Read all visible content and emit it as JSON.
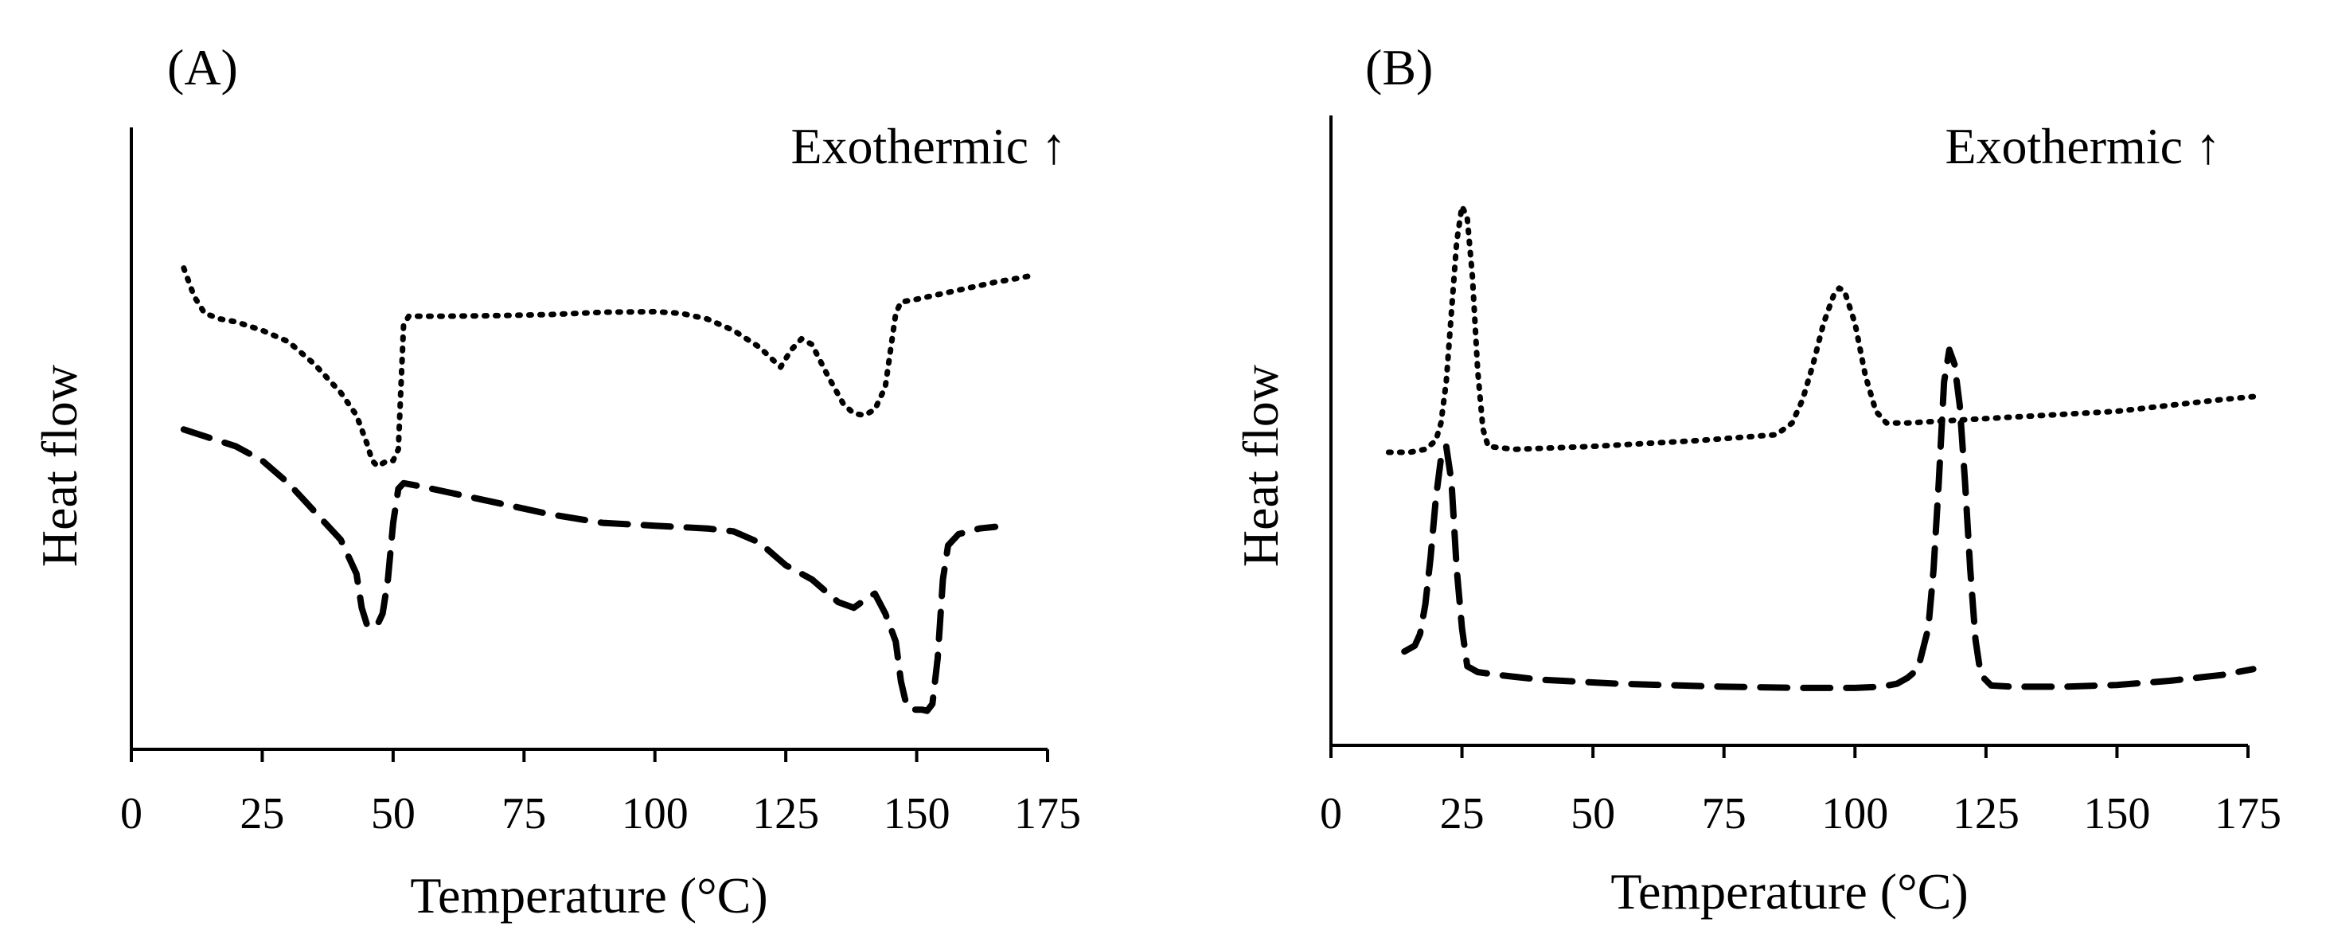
{
  "chart_data": [
    {
      "type": "line",
      "panel_label": "(A)",
      "annotation": "Exothermic ↑",
      "xlabel": "Temperature (°C)",
      "ylabel": "Heat flow",
      "xlim": [
        0,
        175
      ],
      "ylim": [
        0,
        100
      ],
      "x_ticks": [
        0,
        25,
        50,
        75,
        100,
        125,
        150,
        175
      ],
      "grid": false,
      "series": [
        {
          "name": "dotted",
          "style": "dotted",
          "points": [
            [
              10,
              85
            ],
            [
              12,
              80
            ],
            [
              14,
              77
            ],
            [
              17,
              76
            ],
            [
              20,
              75.5
            ],
            [
              25,
              74
            ],
            [
              30,
              72
            ],
            [
              35,
              68
            ],
            [
              40,
              63
            ],
            [
              43,
              59
            ],
            [
              45,
              54
            ],
            [
              46,
              51
            ],
            [
              47,
              50
            ],
            [
              48,
              50.5
            ],
            [
              49,
              51
            ],
            [
              50,
              51
            ],
            [
              51,
              53
            ],
            [
              52,
              75
            ],
            [
              53,
              76.5
            ],
            [
              60,
              76.5
            ],
            [
              70,
              76.6
            ],
            [
              80,
              76.8
            ],
            [
              90,
              77.2
            ],
            [
              100,
              77.3
            ],
            [
              105,
              77
            ],
            [
              110,
              76
            ],
            [
              115,
              74
            ],
            [
              120,
              71
            ],
            [
              124,
              67.5
            ],
            [
              126,
              70.5
            ],
            [
              128,
              72.5
            ],
            [
              130,
              71.5
            ],
            [
              133,
              66
            ],
            [
              136,
              61
            ],
            [
              138,
              59.3
            ],
            [
              140,
              59
            ],
            [
              142,
              60
            ],
            [
              144,
              64
            ],
            [
              146,
              77
            ],
            [
              147,
              79
            ],
            [
              150,
              79.5
            ],
            [
              155,
              80.5
            ],
            [
              160,
              81.5
            ],
            [
              165,
              82.5
            ],
            [
              170,
              83.3
            ],
            [
              172,
              83.7
            ]
          ]
        },
        {
          "name": "dashed",
          "style": "dashed",
          "points": [
            [
              10,
              56.5
            ],
            [
              15,
              55
            ],
            [
              20,
              53.5
            ],
            [
              25,
              51
            ],
            [
              30,
              47
            ],
            [
              35,
              42
            ],
            [
              40,
              37
            ],
            [
              43,
              31
            ],
            [
              44,
              25
            ],
            [
              45,
              22
            ],
            [
              46,
              21.5
            ],
            [
              47,
              22
            ],
            [
              48,
              24
            ],
            [
              49,
              30
            ],
            [
              50,
              40
            ],
            [
              51,
              46
            ],
            [
              52,
              47
            ],
            [
              55,
              46.5
            ],
            [
              60,
              45.5
            ],
            [
              70,
              43.5
            ],
            [
              80,
              41.5
            ],
            [
              90,
              40
            ],
            [
              100,
              39.5
            ],
            [
              110,
              39
            ],
            [
              115,
              38.5
            ],
            [
              120,
              36.5
            ],
            [
              125,
              32.5
            ],
            [
              130,
              30
            ],
            [
              135,
              26
            ],
            [
              138,
              25
            ],
            [
              141,
              27
            ],
            [
              142,
              27.5
            ],
            [
              144,
              24
            ],
            [
              146,
              19
            ],
            [
              147,
              12
            ],
            [
              148,
              8
            ],
            [
              149,
              7
            ],
            [
              150,
              7
            ],
            [
              151,
              7
            ],
            [
              152,
              6.8
            ],
            [
              153,
              8
            ],
            [
              154,
              16
            ],
            [
              155,
              30
            ],
            [
              156,
              36
            ],
            [
              158,
              38
            ],
            [
              162,
              39
            ],
            [
              165,
              39.3
            ]
          ]
        }
      ]
    },
    {
      "type": "line",
      "panel_label": "(B)",
      "annotation": "Exothermic ↑",
      "xlabel": "Temperature (°C)",
      "ylabel": "Heat flow",
      "xlim": [
        0,
        175
      ],
      "ylim": [
        0,
        100
      ],
      "x_ticks": [
        0,
        25,
        50,
        75,
        100,
        125,
        150,
        175
      ],
      "grid": false,
      "series": [
        {
          "name": "dotted",
          "style": "dotted",
          "points": [
            [
              11,
              50
            ],
            [
              15,
              50
            ],
            [
              18,
              50.5
            ],
            [
              20,
              52
            ],
            [
              21,
              55
            ],
            [
              22,
              62
            ],
            [
              23,
              74
            ],
            [
              24,
              86
            ],
            [
              25,
              92
            ],
            [
              26,
              90
            ],
            [
              27,
              80
            ],
            [
              28,
              64
            ],
            [
              29,
              54
            ],
            [
              30,
              51
            ],
            [
              35,
              50.5
            ],
            [
              50,
              51
            ],
            [
              70,
              52
            ],
            [
              85,
              53
            ],
            [
              88,
              55
            ],
            [
              90,
              59
            ],
            [
              92,
              65
            ],
            [
              94,
              72
            ],
            [
              96,
              77
            ],
            [
              97,
              78
            ],
            [
              98,
              77.5
            ],
            [
              100,
              72
            ],
            [
              102,
              63
            ],
            [
              104,
              57
            ],
            [
              106,
              55
            ],
            [
              110,
              55
            ],
            [
              120,
              55.5
            ],
            [
              130,
              56
            ],
            [
              140,
              56.5
            ],
            [
              150,
              57
            ],
            [
              160,
              58
            ],
            [
              170,
              59
            ],
            [
              176,
              59.5
            ]
          ]
        },
        {
          "name": "dashed",
          "style": "dashed",
          "points": [
            [
              14,
              16
            ],
            [
              16,
              17
            ],
            [
              17,
              19
            ],
            [
              18,
              24
            ],
            [
              19,
              32
            ],
            [
              20,
              42
            ],
            [
              21,
              49
            ],
            [
              22,
              51
            ],
            [
              23,
              45
            ],
            [
              24,
              30
            ],
            [
              25,
              20
            ],
            [
              26,
              13.5
            ],
            [
              28,
              12.5
            ],
            [
              32,
              12
            ],
            [
              40,
              11.2
            ],
            [
              55,
              10.5
            ],
            [
              75,
              10
            ],
            [
              90,
              9.8
            ],
            [
              100,
              9.8
            ],
            [
              105,
              10
            ],
            [
              108,
              10.5
            ],
            [
              110,
              11.5
            ],
            [
              112,
              13
            ],
            [
              114,
              20
            ],
            [
              115,
              30
            ],
            [
              116,
              45
            ],
            [
              117,
              62
            ],
            [
              118,
              67.5
            ],
            [
              119,
              65
            ],
            [
              120,
              58
            ],
            [
              121,
              45
            ],
            [
              122,
              30
            ],
            [
              123,
              18
            ],
            [
              124,
              12
            ],
            [
              126,
              10.2
            ],
            [
              130,
              10
            ],
            [
              140,
              10
            ],
            [
              150,
              10.3
            ],
            [
              160,
              11
            ],
            [
              170,
              12
            ],
            [
              176,
              13
            ]
          ]
        }
      ]
    }
  ]
}
